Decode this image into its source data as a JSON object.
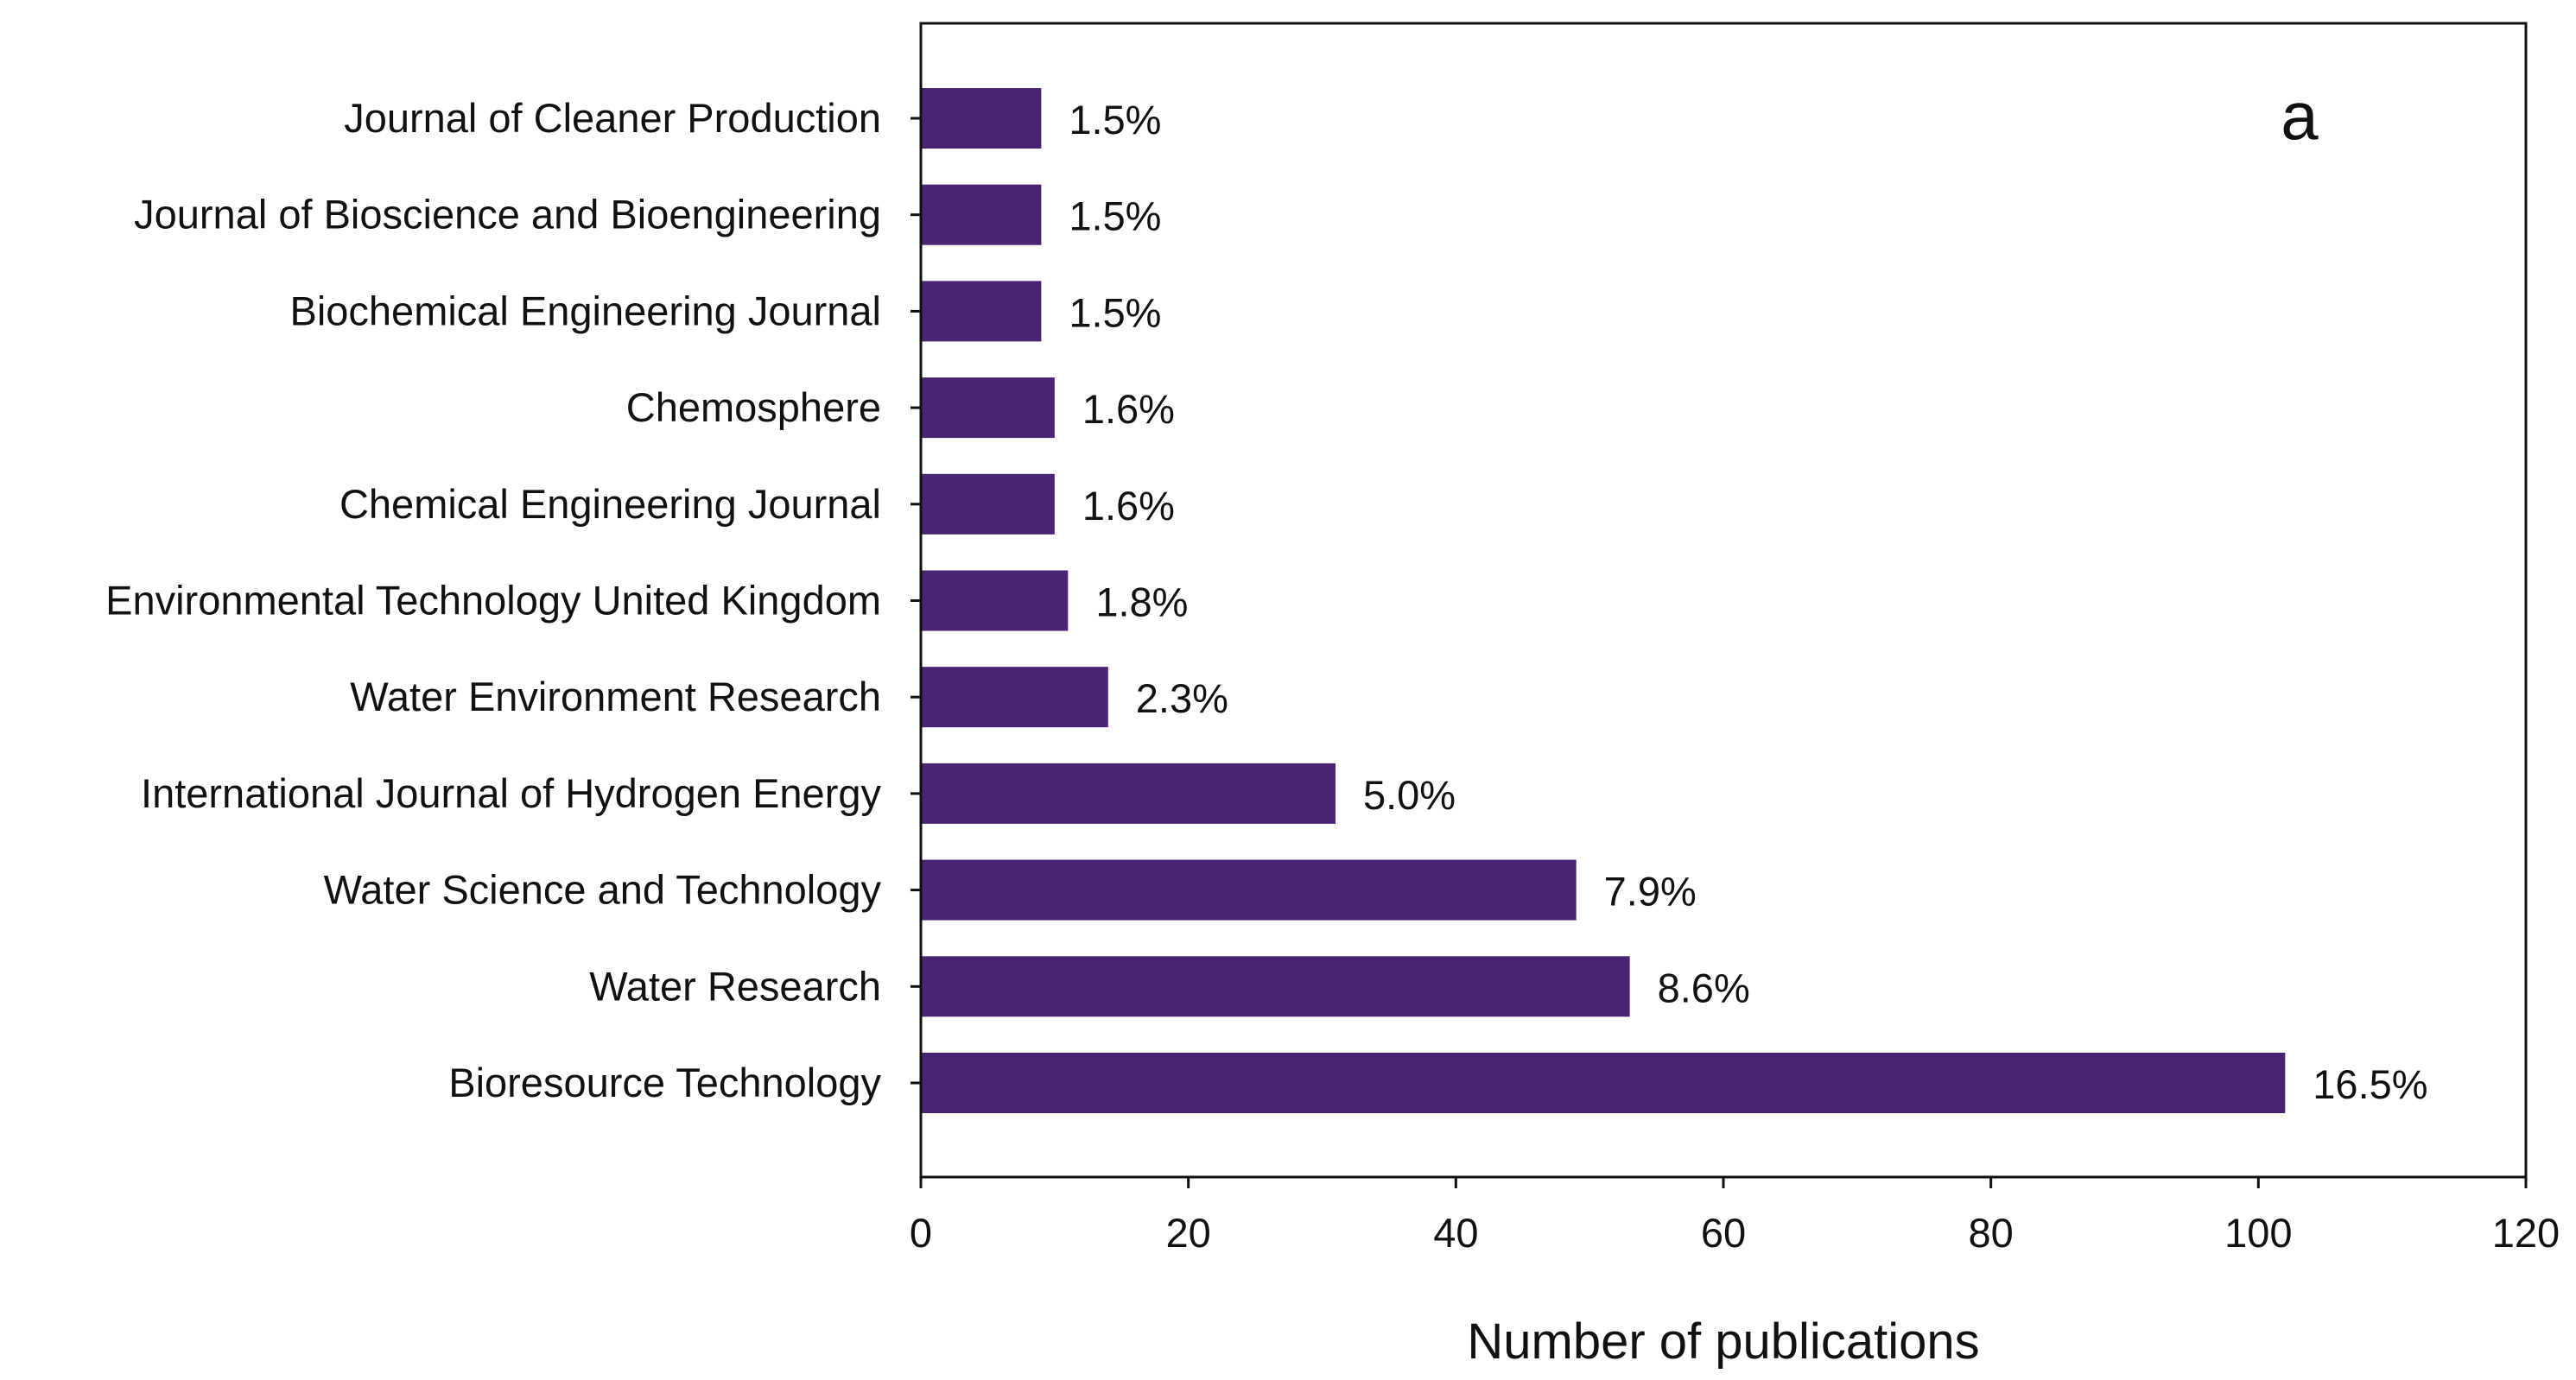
{
  "chart_data": {
    "type": "bar",
    "orientation": "horizontal",
    "panel_label": "a",
    "title": "",
    "xlabel": "Number of publications",
    "ylabel": "",
    "xlim": [
      0,
      120
    ],
    "xticks": [
      0,
      20,
      40,
      60,
      80,
      100,
      120
    ],
    "grid": false,
    "bar_color": "#4a2373",
    "categories": [
      "Journal of Cleaner Production",
      "Journal of Bioscience and Bioengineering",
      "Biochemical Engineering Journal",
      "Chemosphere",
      "Chemical Engineering Journal",
      "Environmental Technology United Kingdom",
      "Water Environment Research",
      "International Journal of Hydrogen Energy",
      "Water Science and Technology",
      "Water Research",
      "Bioresource Technology"
    ],
    "values": [
      9,
      9,
      9,
      10,
      10,
      11,
      14,
      31,
      49,
      53,
      102
    ],
    "data_labels": [
      "1.5%",
      "1.5%",
      "1.5%",
      "1.6%",
      "1.6%",
      "1.8%",
      "2.3%",
      "5.0%",
      "7.9%",
      "8.6%",
      "16.5%"
    ]
  }
}
